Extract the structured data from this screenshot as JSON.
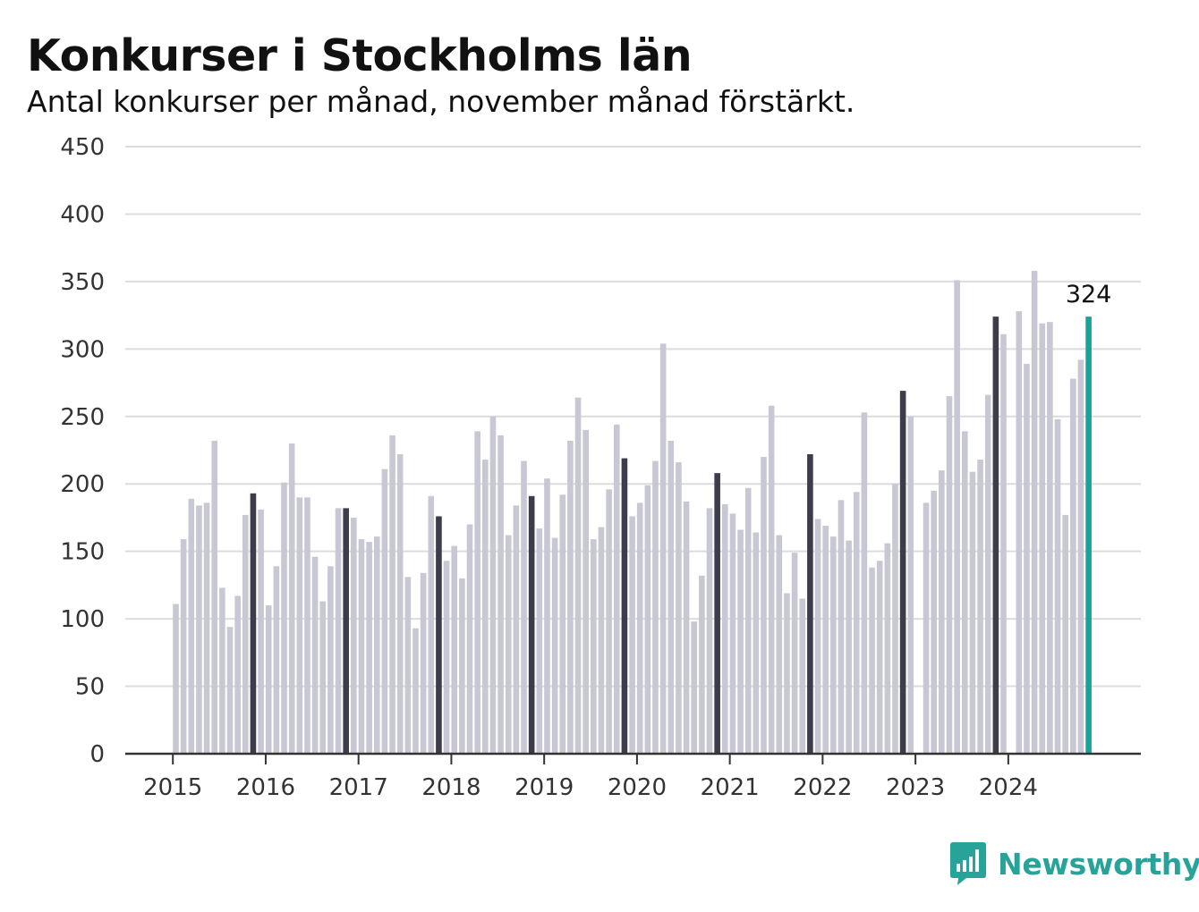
{
  "header": {
    "title": "Konkurser i Stockholms län",
    "subtitle": "Antal konkurser per månad, november månad förstärkt."
  },
  "logo": {
    "text": "Newsworthy",
    "icon": "bar-chart-speech-bubble-icon",
    "color": "#27a39a"
  },
  "colors": {
    "default": "#c8c7d4",
    "november": "#3d3c4b",
    "latest": "#17a398",
    "grid": "#dcdcdc",
    "axis": "#333333"
  },
  "chart_data": {
    "type": "bar",
    "ylim": [
      0,
      450
    ],
    "yticks": [
      0,
      50,
      100,
      150,
      200,
      250,
      300,
      350,
      400,
      450
    ],
    "xticks": [
      "2015",
      "2016",
      "2017",
      "2018",
      "2019",
      "2020",
      "2021",
      "2022",
      "2023",
      "2024"
    ],
    "start": "2015-01",
    "highlight_month": "november",
    "annotation": {
      "label": "324",
      "month": "2024-11"
    },
    "values": [
      111,
      159,
      189,
      184,
      186,
      232,
      123,
      94,
      117,
      177,
      193,
      181,
      110,
      139,
      201,
      230,
      190,
      190,
      146,
      113,
      139,
      182,
      182,
      175,
      159,
      157,
      161,
      211,
      236,
      222,
      131,
      93,
      134,
      191,
      176,
      143,
      154,
      130,
      170,
      239,
      218,
      250,
      236,
      162,
      184,
      217,
      191,
      167,
      204,
      160,
      192,
      232,
      264,
      240,
      159,
      168,
      196,
      244,
      219,
      176,
      186,
      199,
      217,
      304,
      232,
      216,
      187,
      98,
      132,
      182,
      208,
      185,
      178,
      166,
      197,
      164,
      220,
      258,
      162,
      119,
      149,
      115,
      222,
      174,
      169,
      161,
      188,
      158,
      194,
      253,
      138,
      143,
      156,
      200,
      269,
      250,
      0,
      186,
      195,
      210,
      265,
      351,
      239,
      209,
      218,
      266,
      324,
      311,
      0,
      328,
      289,
      358,
      319,
      320,
      248,
      177,
      278,
      292,
      324
    ]
  }
}
